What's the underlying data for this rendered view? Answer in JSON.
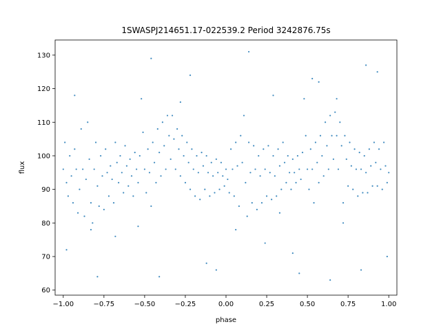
{
  "chart_data": {
    "type": "scatter",
    "title": "1SWASPJ214651.17-022539.2 Period 3242876.75s",
    "xlabel": "phase",
    "ylabel": "flux",
    "xlim": [
      -1.05,
      1.05
    ],
    "ylim": [
      58.5,
      134.5
    ],
    "xticks": [
      -1.0,
      -0.75,
      -0.5,
      -0.25,
      0.0,
      0.25,
      0.5,
      0.75,
      1.0
    ],
    "xtick_labels": [
      "−1.00",
      "−0.75",
      "−0.50",
      "−0.25",
      "0.00",
      "0.25",
      "0.50",
      "0.75",
      "1.00"
    ],
    "yticks": [
      60,
      70,
      80,
      90,
      100,
      110,
      120,
      130
    ],
    "ytick_labels": [
      "60",
      "70",
      "80",
      "90",
      "100",
      "110",
      "120",
      "130"
    ],
    "grid": false,
    "point_color": "#1f77b4",
    "series": [
      {
        "points": [
          [
            -1.0,
            96
          ],
          [
            -0.99,
            104
          ],
          [
            -0.98,
            92
          ],
          [
            -0.97,
            88
          ],
          [
            -0.96,
            100
          ],
          [
            -0.95,
            94
          ],
          [
            -0.94,
            86
          ],
          [
            -0.93,
            102
          ],
          [
            -0.92,
            96
          ],
          [
            -0.91,
            83
          ],
          [
            -0.9,
            90
          ],
          [
            -0.89,
            108
          ],
          [
            -0.88,
            96
          ],
          [
            -0.87,
            82
          ],
          [
            -0.86,
            93
          ],
          [
            -0.85,
            110
          ],
          [
            -0.84,
            99
          ],
          [
            -0.83,
            86
          ],
          [
            -0.82,
            80
          ],
          [
            -0.81,
            96
          ],
          [
            -0.8,
            104
          ],
          [
            -0.79,
            91
          ],
          [
            -0.78,
            85
          ],
          [
            -0.77,
            100
          ],
          [
            -0.76,
            94
          ],
          [
            -0.75,
            84
          ],
          [
            -0.74,
            102
          ],
          [
            -0.73,
            95
          ],
          [
            -0.72,
            88
          ],
          [
            -0.71,
            97
          ],
          [
            -0.7,
            93
          ],
          [
            -0.69,
            86
          ],
          [
            -0.68,
            104
          ],
          [
            -0.67,
            98
          ],
          [
            -0.66,
            92
          ],
          [
            -0.65,
            100
          ],
          [
            -0.64,
            95
          ],
          [
            -0.63,
            89
          ],
          [
            -0.62,
            103
          ],
          [
            -0.61,
            97
          ],
          [
            -0.6,
            91
          ],
          [
            -0.59,
            99
          ],
          [
            -0.58,
            94
          ],
          [
            -0.57,
            88
          ],
          [
            -0.56,
            101
          ],
          [
            -0.55,
            96
          ],
          [
            -0.54,
            92
          ],
          [
            -0.53,
            100
          ],
          [
            -0.52,
            117
          ],
          [
            -0.51,
            107
          ],
          [
            -0.5,
            96
          ],
          [
            -0.49,
            89
          ],
          [
            -0.48,
            102
          ],
          [
            -0.47,
            95
          ],
          [
            -0.46,
            85
          ],
          [
            -0.45,
            104
          ],
          [
            -0.44,
            98
          ],
          [
            -0.43,
            92
          ],
          [
            -0.42,
            108
          ],
          [
            -0.41,
            101
          ],
          [
            -0.4,
            94
          ],
          [
            -0.39,
            110
          ],
          [
            -0.38,
            103
          ],
          [
            -0.37,
            96
          ],
          [
            -0.36,
            112
          ],
          [
            -0.35,
            106
          ],
          [
            -0.34,
            99
          ],
          [
            -0.33,
            112
          ],
          [
            -0.32,
            105
          ],
          [
            -0.31,
            96
          ],
          [
            -0.3,
            108
          ],
          [
            -0.29,
            102
          ],
          [
            -0.28,
            94
          ],
          [
            -0.27,
            106
          ],
          [
            -0.26,
            100
          ],
          [
            -0.25,
            92
          ],
          [
            -0.24,
            104
          ],
          [
            -0.23,
            98
          ],
          [
            -0.22,
            90
          ],
          [
            -0.21,
            102
          ],
          [
            -0.2,
            96
          ],
          [
            -0.19,
            88
          ],
          [
            -0.18,
            100
          ],
          [
            -0.17,
            95
          ],
          [
            -0.16,
            87
          ],
          [
            -0.15,
            101
          ],
          [
            -0.14,
            97
          ],
          [
            -0.13,
            90
          ],
          [
            -0.12,
            100
          ],
          [
            -0.11,
            95
          ],
          [
            -0.1,
            88
          ],
          [
            -0.09,
            98
          ],
          [
            -0.08,
            94
          ],
          [
            -0.07,
            89
          ],
          [
            -0.06,
            99
          ],
          [
            -0.05,
            95
          ],
          [
            -0.04,
            90
          ],
          [
            -0.03,
            98
          ],
          [
            -0.02,
            94
          ],
          [
            -0.01,
            91
          ],
          [
            0.0,
            96
          ],
          [
            0.01,
            93
          ],
          [
            0.02,
            89
          ],
          [
            0.03,
            102
          ],
          [
            0.04,
            96
          ],
          [
            0.05,
            88
          ],
          [
            0.06,
            104
          ],
          [
            0.07,
            97
          ],
          [
            0.08,
            85
          ],
          [
            0.09,
            106
          ],
          [
            0.1,
            98
          ],
          [
            0.11,
            112
          ],
          [
            0.12,
            92
          ],
          [
            0.13,
            82
          ],
          [
            0.14,
            104
          ],
          [
            0.15,
            95
          ],
          [
            0.16,
            86
          ],
          [
            0.17,
            103
          ],
          [
            0.18,
            96
          ],
          [
            0.19,
            84
          ],
          [
            0.2,
            100
          ],
          [
            0.21,
            94
          ],
          [
            0.22,
            86
          ],
          [
            0.23,
            102
          ],
          [
            0.24,
            96
          ],
          [
            0.25,
            88
          ],
          [
            0.26,
            103
          ],
          [
            0.27,
            95
          ],
          [
            0.28,
            87
          ],
          [
            0.29,
            100
          ],
          [
            0.3,
            94
          ],
          [
            0.31,
            88
          ],
          [
            0.32,
            102
          ],
          [
            0.33,
            97
          ],
          [
            0.34,
            90
          ],
          [
            0.35,
            104
          ],
          [
            0.36,
            98
          ],
          [
            0.37,
            92
          ],
          [
            0.38,
            100
          ],
          [
            0.39,
            95
          ],
          [
            0.4,
            90
          ],
          [
            0.41,
            99
          ],
          [
            0.42,
            95
          ],
          [
            0.43,
            92
          ],
          [
            0.44,
            100
          ],
          [
            0.45,
            96
          ],
          [
            0.46,
            93
          ],
          [
            0.47,
            101
          ],
          [
            0.48,
            117
          ],
          [
            0.49,
            106
          ],
          [
            0.5,
            96
          ],
          [
            0.51,
            90
          ],
          [
            0.52,
            102
          ],
          [
            0.53,
            96
          ],
          [
            0.54,
            86
          ],
          [
            0.55,
            104
          ],
          [
            0.56,
            98
          ],
          [
            0.57,
            92
          ],
          [
            0.58,
            106
          ],
          [
            0.59,
            100
          ],
          [
            0.6,
            94
          ],
          [
            0.61,
            110
          ],
          [
            0.62,
            103
          ],
          [
            0.63,
            96
          ],
          [
            0.64,
            112
          ],
          [
            0.65,
            106
          ],
          [
            0.66,
            99
          ],
          [
            0.67,
            113
          ],
          [
            0.68,
            106
          ],
          [
            0.69,
            96
          ],
          [
            0.7,
            110
          ],
          [
            0.71,
            103
          ],
          [
            0.72,
            86
          ],
          [
            0.73,
            106
          ],
          [
            0.74,
            99
          ],
          [
            0.75,
            91
          ],
          [
            0.76,
            104
          ],
          [
            0.77,
            97
          ],
          [
            0.78,
            90
          ],
          [
            0.79,
            102
          ],
          [
            0.8,
            96
          ],
          [
            0.81,
            88
          ],
          [
            0.82,
            101
          ],
          [
            0.83,
            96
          ],
          [
            0.84,
            89
          ],
          [
            0.85,
            100
          ],
          [
            0.86,
            95
          ],
          [
            0.87,
            89
          ],
          [
            0.88,
            102
          ],
          [
            0.89,
            97
          ],
          [
            0.9,
            91
          ],
          [
            0.91,
            104
          ],
          [
            0.92,
            98
          ],
          [
            0.93,
            91
          ],
          [
            0.94,
            102
          ],
          [
            0.95,
            96
          ],
          [
            0.96,
            90
          ],
          [
            0.97,
            104
          ],
          [
            0.98,
            97
          ],
          [
            0.99,
            92
          ],
          [
            1.0,
            95
          ],
          [
            -0.98,
            72
          ],
          [
            -0.83,
            78
          ],
          [
            -0.79,
            64
          ],
          [
            -0.68,
            76
          ],
          [
            -0.46,
            129
          ],
          [
            -0.41,
            64
          ],
          [
            -0.22,
            124
          ],
          [
            -0.12,
            68
          ],
          [
            -0.06,
            66
          ],
          [
            0.06,
            78
          ],
          [
            0.14,
            131
          ],
          [
            0.24,
            74
          ],
          [
            0.29,
            118
          ],
          [
            0.41,
            71
          ],
          [
            0.45,
            65
          ],
          [
            0.53,
            123
          ],
          [
            0.57,
            122
          ],
          [
            0.64,
            63
          ],
          [
            0.72,
            80
          ],
          [
            0.83,
            66
          ],
          [
            0.86,
            127
          ],
          [
            0.93,
            125
          ],
          [
            0.99,
            70
          ],
          [
            -0.93,
            118
          ],
          [
            -0.54,
            79
          ],
          [
            -0.28,
            116
          ],
          [
            0.33,
            83
          ],
          [
            0.68,
            117
          ]
        ]
      }
    ]
  }
}
